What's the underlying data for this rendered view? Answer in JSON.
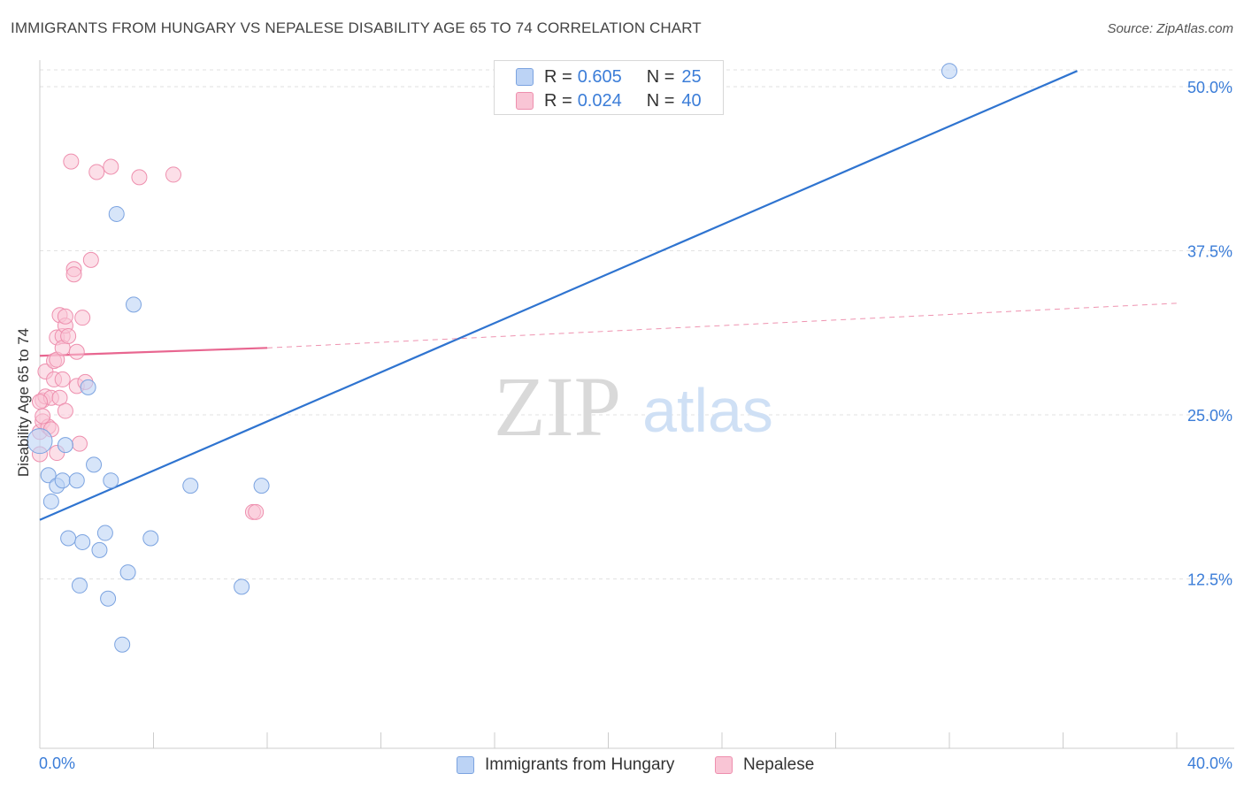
{
  "header": {
    "title": "IMMIGRANTS FROM HUNGARY VS NEPALESE DISABILITY AGE 65 TO 74 CORRELATION CHART",
    "source": "Source: ZipAtlas.com"
  },
  "watermark": {
    "zip": "ZIP",
    "atlas": "atlas"
  },
  "legend": {
    "rows": [
      {
        "r_label": "R =",
        "r_value": "0.605",
        "n_label": "N =",
        "n_value": "25"
      },
      {
        "r_label": "R =",
        "r_value": "0.024",
        "n_label": "N =",
        "n_value": "40"
      }
    ]
  },
  "bottom_legend": {
    "series1": "Immigrants from Hungary",
    "series2": "Nepalese"
  },
  "colors": {
    "blue_fill": "#bcd3f5",
    "blue_stroke": "#7ba3e0",
    "blue_line": "#2f74d0",
    "pink_fill": "#f9c5d5",
    "pink_stroke": "#ee8fae",
    "pink_line": "#e86690",
    "axis_text": "#3b7dd8"
  },
  "chart_data": {
    "type": "scatter",
    "title": "IMMIGRANTS FROM HUNGARY VS NEPALESE DISABILITY AGE 65 TO 74 CORRELATION CHART",
    "xlabel": "",
    "ylabel": "Disability Age 65 to 74",
    "xlim": [
      0,
      40
    ],
    "ylim": [
      0,
      52
    ],
    "x_tick_labels": [
      "0.0%",
      "40.0%"
    ],
    "y_ticks": [
      12.5,
      25.0,
      37.5,
      50.0
    ],
    "y_tick_labels": [
      "12.5%",
      "25.0%",
      "37.5%",
      "50.0%"
    ],
    "grid": true,
    "legend_position": "top-center",
    "series": [
      {
        "name": "Immigrants from Hungary",
        "color": "blue",
        "R": 0.605,
        "N": 25,
        "trend": {
          "x": [
            0,
            36.5
          ],
          "y": [
            17.0,
            51.2
          ],
          "style": "solid"
        },
        "points": [
          [
            0.0,
            23.0
          ],
          [
            0.3,
            20.4
          ],
          [
            0.4,
            18.4
          ],
          [
            0.6,
            19.6
          ],
          [
            0.8,
            20.0
          ],
          [
            0.9,
            22.7
          ],
          [
            1.0,
            15.6
          ],
          [
            1.3,
            20.0
          ],
          [
            1.4,
            12.0
          ],
          [
            1.5,
            15.3
          ],
          [
            1.7,
            27.1
          ],
          [
            1.9,
            21.2
          ],
          [
            2.1,
            14.7
          ],
          [
            2.3,
            16.0
          ],
          [
            2.4,
            11.0
          ],
          [
            2.5,
            20.0
          ],
          [
            2.7,
            40.3
          ],
          [
            2.9,
            7.5
          ],
          [
            3.1,
            13.0
          ],
          [
            3.3,
            33.4
          ],
          [
            3.9,
            15.6
          ],
          [
            5.3,
            19.6
          ],
          [
            7.1,
            11.9
          ],
          [
            7.8,
            19.6
          ],
          [
            32.0,
            51.2
          ]
        ]
      },
      {
        "name": "Nepalese",
        "color": "pink",
        "R": 0.024,
        "N": 40,
        "trend": {
          "x": [
            0,
            8.0,
            40.0
          ],
          "y": [
            29.5,
            30.1,
            33.5
          ],
          "style": "solid-then-dashed"
        },
        "points": [
          [
            0.0,
            23.7
          ],
          [
            0.1,
            24.5
          ],
          [
            0.1,
            26.1
          ],
          [
            0.2,
            28.3
          ],
          [
            0.2,
            26.4
          ],
          [
            0.3,
            24.1
          ],
          [
            0.4,
            23.9
          ],
          [
            0.4,
            26.3
          ],
          [
            0.5,
            27.7
          ],
          [
            0.5,
            29.1
          ],
          [
            0.6,
            22.1
          ],
          [
            0.6,
            29.2
          ],
          [
            0.6,
            30.9
          ],
          [
            0.7,
            26.3
          ],
          [
            0.7,
            32.6
          ],
          [
            0.8,
            31.0
          ],
          [
            0.8,
            30.1
          ],
          [
            0.8,
            27.7
          ],
          [
            0.9,
            25.3
          ],
          [
            0.9,
            31.8
          ],
          [
            0.9,
            32.5
          ],
          [
            1.0,
            31.0
          ],
          [
            1.1,
            44.3
          ],
          [
            1.2,
            36.1
          ],
          [
            1.2,
            35.7
          ],
          [
            1.3,
            29.8
          ],
          [
            1.3,
            27.2
          ],
          [
            1.4,
            22.8
          ],
          [
            1.5,
            32.4
          ],
          [
            1.6,
            27.5
          ],
          [
            1.8,
            36.8
          ],
          [
            2.0,
            43.5
          ],
          [
            2.5,
            43.9
          ],
          [
            3.5,
            43.1
          ],
          [
            4.7,
            43.3
          ],
          [
            7.5,
            17.6
          ],
          [
            7.6,
            17.6
          ],
          [
            0.0,
            26.0
          ],
          [
            0.0,
            22.0
          ],
          [
            0.1,
            24.9
          ]
        ]
      }
    ]
  }
}
